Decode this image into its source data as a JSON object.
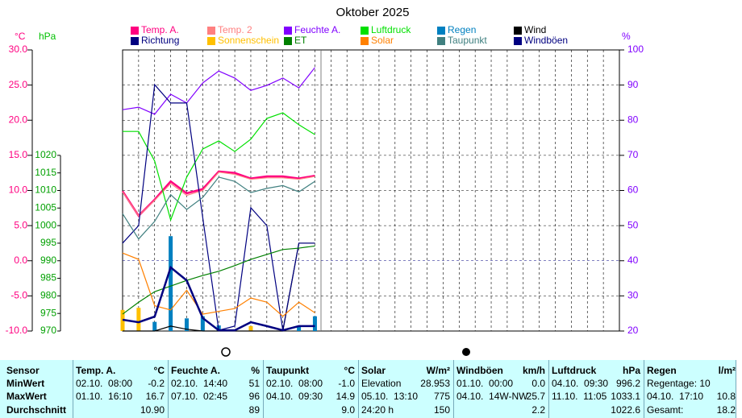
{
  "chart_data": {
    "type": "line",
    "title": "Oktober 2025",
    "y_label": "°C",
    "y3_label": "hPa",
    "y2_label": "%",
    "x": [
      1,
      2,
      3,
      4,
      5,
      6,
      7,
      8,
      9,
      10,
      11,
      12,
      13
    ],
    "xlim": [
      1,
      32
    ],
    "xticks": [
      1,
      2,
      3,
      4,
      5,
      6,
      7,
      8,
      9,
      10,
      11,
      12,
      13,
      14,
      15,
      16,
      17,
      18,
      19,
      20,
      21,
      22,
      23,
      24,
      25,
      26,
      27,
      28,
      29,
      30,
      31,
      32
    ],
    "ylim": [
      -10,
      30
    ],
    "yticks": [
      {
        "value": -10,
        "label": "-10.0"
      },
      {
        "value": -5,
        "label": "-5.0"
      },
      {
        "value": 0,
        "label": "0.0"
      },
      {
        "value": 5,
        "label": "5.0"
      },
      {
        "value": 10,
        "label": "10.0"
      },
      {
        "value": 15,
        "label": "15.0"
      },
      {
        "value": 20,
        "label": "20.0"
      },
      {
        "value": 25,
        "label": "25.0"
      },
      {
        "value": 30,
        "label": "30.0"
      }
    ],
    "y3lim": [
      970,
      1050
    ],
    "y3ticks": [
      970,
      975,
      980,
      985,
      990,
      995,
      1000,
      1005,
      1010,
      1015,
      1020
    ],
    "y2lim": [
      20,
      100
    ],
    "y2ticks": [
      20,
      30,
      40,
      50,
      60,
      70,
      80,
      90,
      100
    ],
    "grid": true,
    "series": [
      {
        "name": "Temp. A.",
        "color": "#ff0080",
        "values": [
          9.9,
          6.4,
          8.7,
          11.3,
          9.6,
          10.2,
          12.7,
          12.5,
          11.7,
          12.0,
          12.0,
          11.7,
          12.1
        ]
      },
      {
        "name": "Temp. 2",
        "color": "#ff8080",
        "values": [
          9.8,
          6.4,
          8.6,
          11.0,
          9.3,
          10.0,
          12.6,
          12.3,
          11.6,
          11.8,
          11.8,
          11.6,
          12.0
        ]
      },
      {
        "name": "Feuchte A.",
        "color": "#8000ff",
        "axis": "y2",
        "values": [
          83.0,
          83.7,
          81.7,
          87.4,
          84.9,
          90.6,
          94.0,
          92.0,
          88.5,
          89.9,
          92.0,
          89.2,
          95.0
        ]
      },
      {
        "name": "Luftdruck",
        "color": "#00e000",
        "axis": "y3",
        "values": [
          1026.8,
          1026.8,
          1018.4,
          1001.6,
          1013.8,
          1021.8,
          1024.1,
          1021.1,
          1024.6,
          1030.5,
          1032.1,
          1028.7,
          1025.9
        ]
      },
      {
        "name": "Regen",
        "color": "#0080c0",
        "type": "bar",
        "values": [
          null,
          null,
          -8.7,
          3.5,
          -8.2,
          -7.9,
          -9.2,
          null,
          null,
          null,
          null,
          -9.4,
          -7.9
        ]
      },
      {
        "name": "Wind",
        "color": "#000000",
        "axis": "y2",
        "values": [
          20.0,
          20.0,
          20.0,
          21.4,
          20.5,
          20.0,
          20.0,
          20.0,
          20.0,
          20.0,
          20.0,
          45.0,
          45.0
        ]
      },
      {
        "name": "Richtung",
        "color": "#000080",
        "axis": "y2",
        "values": [
          45.0,
          50.0,
          90.1,
          84.9,
          84.9,
          52.3,
          20.2,
          21.4,
          55.1,
          50.0,
          20.2,
          45.0,
          45.0
        ]
      },
      {
        "name": "Sonnenschein",
        "color": "#ffc000",
        "type": "bar",
        "values": [
          -7.0,
          -6.7,
          null,
          null,
          null,
          null,
          null,
          null,
          -9.3,
          null,
          null,
          null,
          null
        ]
      },
      {
        "name": "ET",
        "color": "#008000",
        "values": [
          -7.6,
          -5.9,
          -4.4,
          -3.6,
          -2.8,
          -2.1,
          -1.5,
          -0.7,
          0.2,
          0.9,
          1.6,
          1.8,
          2.1
        ]
      },
      {
        "name": "Solar",
        "color": "#ff8000",
        "values": [
          1.1,
          0.2,
          -6.4,
          -7.0,
          -4.2,
          -7.6,
          -7.2,
          -6.8,
          -5.3,
          -5.9,
          -7.9,
          -5.9,
          -7.4
        ]
      },
      {
        "name": "Taupunkt",
        "color": "#408080",
        "values": [
          6.7,
          3.1,
          5.6,
          9.4,
          7.3,
          9.0,
          11.9,
          11.3,
          9.7,
          10.3,
          10.7,
          9.8,
          11.3
        ]
      },
      {
        "name": "Windböen",
        "color": "#000080",
        "axis": "y2",
        "values": [
          23.2,
          22.5,
          24.1,
          38.1,
          34.4,
          23.7,
          20.2,
          20.2,
          22.5,
          21.4,
          20.2,
          21.4,
          21.4
        ]
      }
    ]
  },
  "table": {
    "row_labels": [
      "Sensor",
      "MinWert",
      "MaxWert",
      "Durchschnitt"
    ],
    "groups": [
      {
        "name": "Temp. A.",
        "unit": "°C",
        "rows": [
          [
            "02.10.  08:00",
            "-0.2"
          ],
          [
            "01.10.  16:10",
            "16.7"
          ],
          [
            null,
            "10.90"
          ]
        ]
      },
      {
        "name": "Feuchte A.",
        "unit": "%",
        "rows": [
          [
            "02.10.  14:40",
            "51"
          ],
          [
            "07.10.  02:45",
            "96"
          ],
          [
            null,
            "89"
          ]
        ]
      },
      {
        "name": "Taupunkt",
        "unit": "°C",
        "rows": [
          [
            "02.10.  08:00",
            "-1.0"
          ],
          [
            "04.10.  09:30",
            "14.9"
          ],
          [
            null,
            "9.0"
          ]
        ]
      },
      {
        "name": "Solar",
        "unit": "W/m²",
        "rows": [
          [
            "Elevation",
            "28.953"
          ],
          [
            "05.10.  13:10",
            "775"
          ],
          [
            "24:20 h",
            "150"
          ]
        ]
      },
      {
        "name": "Windböen",
        "unit": "km/h",
        "rows": [
          [
            "01.10.  00:00",
            "0.0"
          ],
          [
            "04.10.  14W-NW",
            "25.7"
          ],
          [
            null,
            "2.2"
          ]
        ]
      },
      {
        "name": "Luftdruck",
        "unit": "hPa",
        "rows": [
          [
            "04.10.  09:30",
            "996.2"
          ],
          [
            "11.10.  11:05",
            "1033.1"
          ],
          [
            null,
            "1022.6"
          ]
        ]
      },
      {
        "name": "Regen",
        "unit": "l/m²",
        "rows": [
          [
            "Regentage: 10",
            null
          ],
          [
            "04.10.  17:10",
            "10.8"
          ],
          [
            "Gesamt:",
            "18.2"
          ]
        ]
      }
    ]
  }
}
